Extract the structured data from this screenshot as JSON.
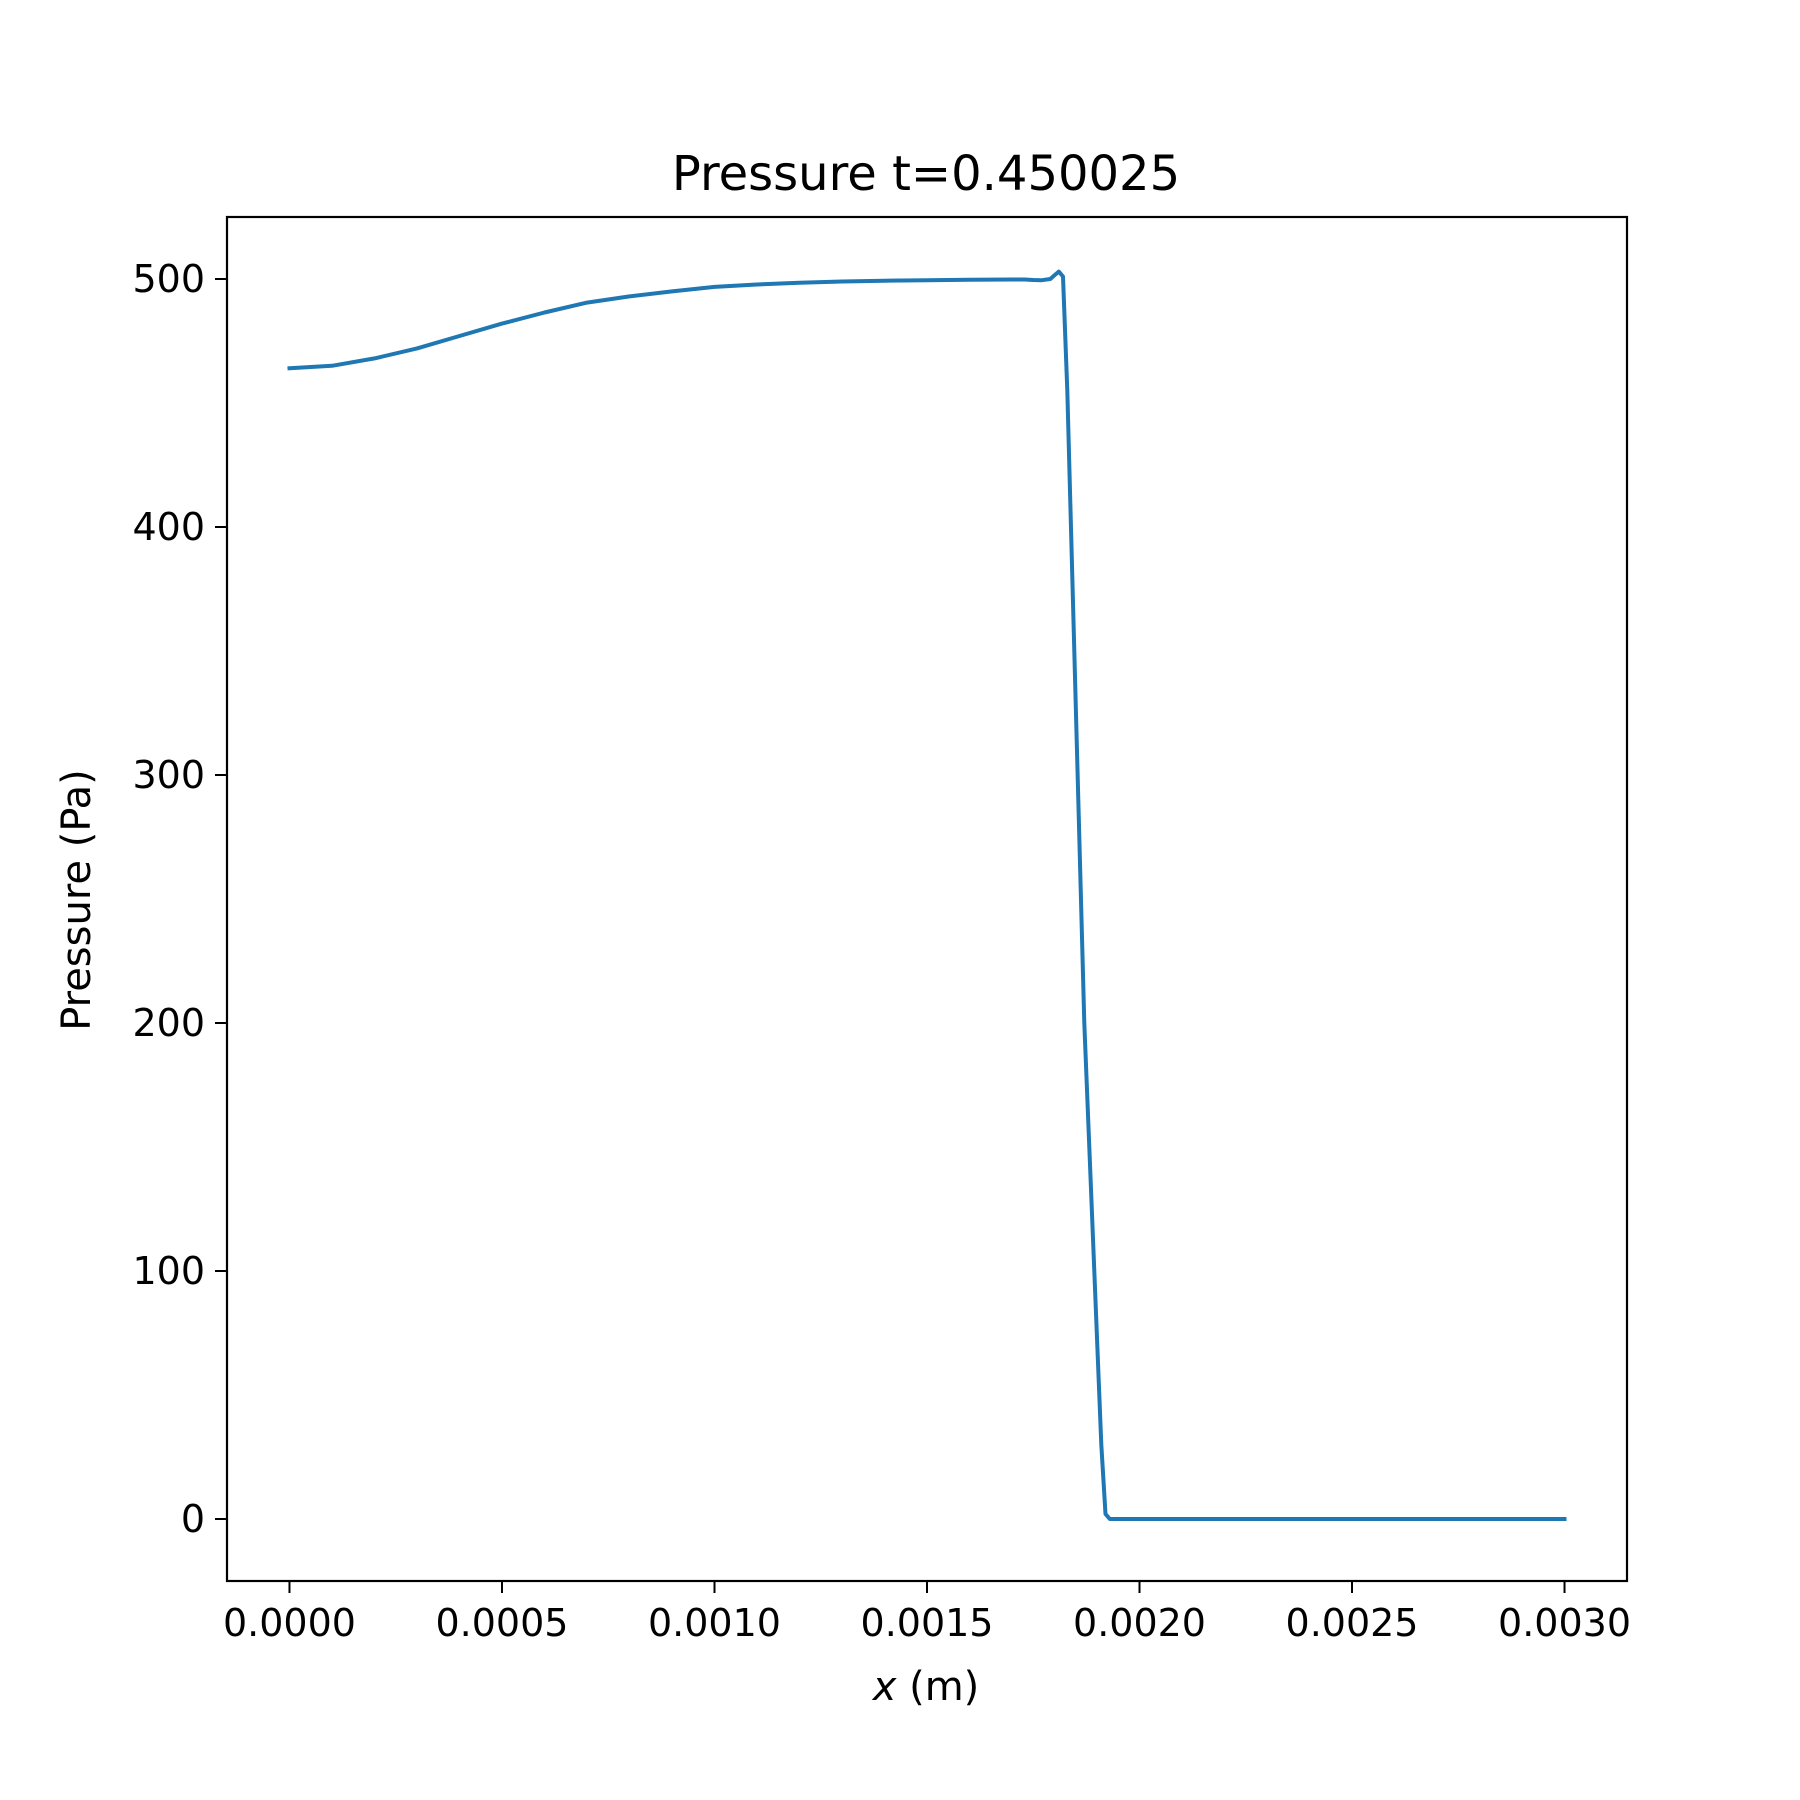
{
  "chart_data": {
    "type": "line",
    "title": "Pressure t=0.450025",
    "xlabel_var": "x",
    "xlabel_unit": " (m)",
    "ylabel": "Pressure (Pa)",
    "xlim": [
      -0.000147,
      0.003147
    ],
    "ylim": [
      -25,
      525
    ],
    "xticks": [
      0.0,
      0.0005,
      0.001,
      0.0015,
      0.002,
      0.0025,
      0.003
    ],
    "xtick_labels": [
      "0.0000",
      "0.0005",
      "0.0010",
      "0.0015",
      "0.0020",
      "0.0025",
      "0.0030"
    ],
    "yticks": [
      0,
      100,
      200,
      300,
      400,
      500
    ],
    "ytick_labels": [
      "0",
      "100",
      "200",
      "300",
      "400",
      "500"
    ],
    "grid": false,
    "line_color": "#1f77b4",
    "series": [
      {
        "x": [
          0.0,
          0.0001,
          0.0002,
          0.0003,
          0.0004,
          0.0005,
          0.0006,
          0.0007,
          0.0008,
          0.0009,
          0.001,
          0.0011,
          0.0012,
          0.0013,
          0.0014,
          0.0015,
          0.0016,
          0.0017,
          0.00173,
          0.00175,
          0.00177,
          0.00179,
          0.0018,
          0.00181,
          0.00182,
          0.00183,
          0.00187,
          0.00191,
          0.00192,
          0.00193,
          0.0025,
          0.003
        ],
        "y": [
          464,
          465,
          468,
          472,
          477,
          482,
          486.5,
          490.5,
          493,
          495,
          496.8,
          497.8,
          498.5,
          499,
          499.3,
          499.5,
          499.7,
          499.8,
          499.8,
          499.6,
          499.5,
          500,
          501.5,
          503,
          501,
          455,
          200,
          30,
          2,
          0,
          0,
          0
        ]
      }
    ]
  }
}
